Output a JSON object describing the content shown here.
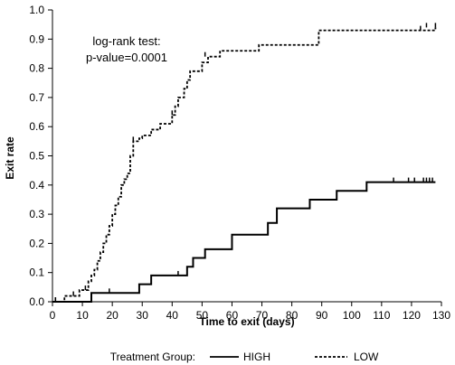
{
  "chart_data": {
    "type": "line",
    "title": "",
    "xlabel": "Time to exit (days)",
    "ylabel": "Exit rate",
    "xlim": [
      0,
      130
    ],
    "ylim": [
      0.0,
      1.0
    ],
    "x_ticks": [
      0,
      10,
      20,
      30,
      40,
      50,
      60,
      70,
      80,
      90,
      100,
      110,
      120,
      130
    ],
    "y_ticks": [
      0.0,
      0.1,
      0.2,
      0.3,
      0.4,
      0.5,
      0.6,
      0.7,
      0.8,
      0.9,
      1.0
    ],
    "y_tick_labels": [
      "0.0",
      "0.1",
      "0.2",
      "0.3",
      "0.4",
      "0.5",
      "0.6",
      "0.7",
      "0.8",
      "0.9",
      "1.0"
    ],
    "annotation": [
      "log-rank test:",
      "p-value=0.0001"
    ],
    "legend": {
      "title": "Treatment Group:",
      "placement": "bottom"
    },
    "series": [
      {
        "name": "HIGH",
        "style": "solid",
        "color": "#000000",
        "steps": [
          [
            0,
            0.0
          ],
          [
            13,
            0.03
          ],
          [
            29,
            0.06
          ],
          [
            33,
            0.09
          ],
          [
            45,
            0.12
          ],
          [
            47,
            0.15
          ],
          [
            51,
            0.18
          ],
          [
            60,
            0.23
          ],
          [
            72,
            0.27
          ],
          [
            75,
            0.32
          ],
          [
            86,
            0.35
          ],
          [
            95,
            0.38
          ],
          [
            105,
            0.41
          ],
          [
            128,
            0.41
          ]
        ],
        "censored": [
          [
            1,
            0.0
          ],
          [
            19,
            0.03
          ],
          [
            42,
            0.09
          ],
          [
            114,
            0.41
          ],
          [
            119,
            0.41
          ],
          [
            121,
            0.41
          ],
          [
            124,
            0.41
          ],
          [
            125,
            0.41
          ],
          [
            126,
            0.41
          ],
          [
            127,
            0.41
          ]
        ]
      },
      {
        "name": "LOW",
        "style": "dashed",
        "color": "#000000",
        "steps": [
          [
            0,
            0.0
          ],
          [
            4,
            0.02
          ],
          [
            9,
            0.04
          ],
          [
            12,
            0.07
          ],
          [
            13,
            0.09
          ],
          [
            14,
            0.11
          ],
          [
            15,
            0.14
          ],
          [
            16,
            0.17
          ],
          [
            17,
            0.2
          ],
          [
            18,
            0.23
          ],
          [
            19,
            0.26
          ],
          [
            20,
            0.3
          ],
          [
            21,
            0.33
          ],
          [
            22,
            0.36
          ],
          [
            23,
            0.4
          ],
          [
            24,
            0.42
          ],
          [
            25,
            0.44
          ],
          [
            26,
            0.5
          ],
          [
            27,
            0.55
          ],
          [
            29,
            0.56
          ],
          [
            30,
            0.57
          ],
          [
            33,
            0.59
          ],
          [
            36,
            0.61
          ],
          [
            40,
            0.64
          ],
          [
            41,
            0.67
          ],
          [
            42,
            0.7
          ],
          [
            44,
            0.73
          ],
          [
            45,
            0.76
          ],
          [
            46,
            0.79
          ],
          [
            50,
            0.82
          ],
          [
            52,
            0.84
          ],
          [
            56,
            0.86
          ],
          [
            69,
            0.88
          ],
          [
            89,
            0.93
          ],
          [
            128,
            0.94
          ]
        ],
        "censored": [
          [
            1,
            0.0
          ],
          [
            7,
            0.02
          ],
          [
            11,
            0.04
          ],
          [
            27,
            0.55
          ],
          [
            40,
            0.64
          ],
          [
            51,
            0.84
          ],
          [
            123,
            0.93
          ],
          [
            125,
            0.94
          ],
          [
            128,
            0.94
          ]
        ]
      }
    ]
  }
}
